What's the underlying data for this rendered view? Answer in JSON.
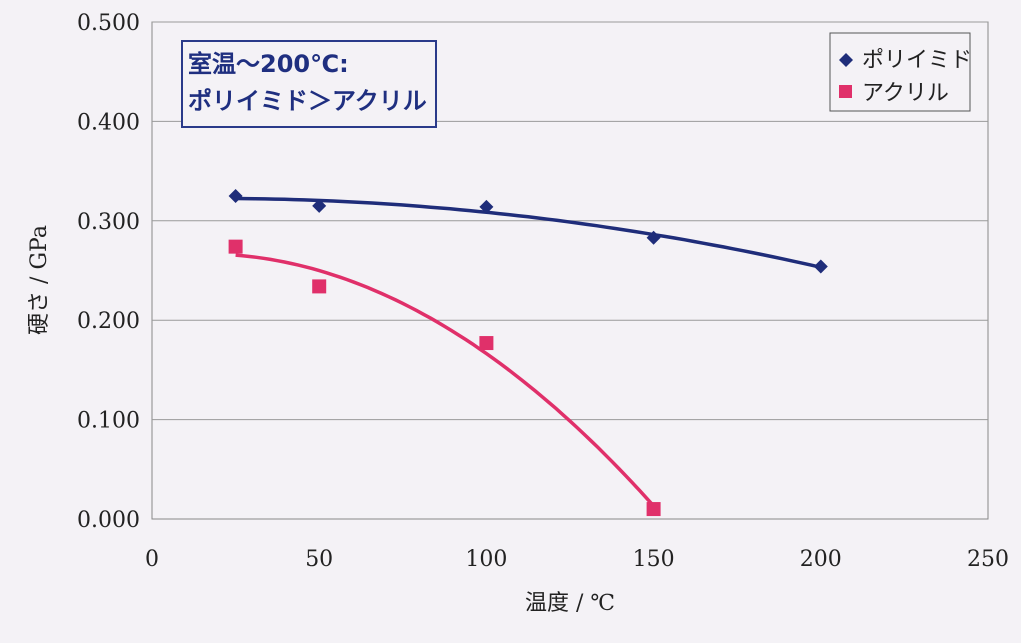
{
  "chart_data": {
    "type": "scatter",
    "xlabel": "温度 / ℃",
    "ylabel": "硬さ / GPa",
    "xlim": [
      0,
      250
    ],
    "ylim": [
      0,
      0.5
    ],
    "x_ticks": [
      "0",
      "50",
      "100",
      "150",
      "200",
      "250"
    ],
    "y_ticks": [
      "0.000",
      "0.100",
      "0.200",
      "0.300",
      "0.400",
      "0.500"
    ],
    "grid": "horizontal",
    "legend_position": "top-right",
    "annotation": [
      "室温～200℃:",
      "ポリイミド＞アクリル"
    ],
    "series": [
      {
        "name": "ポリイミド",
        "marker": "diamond",
        "color": "#1f2d7a",
        "x": [
          25,
          50,
          100,
          150,
          200
        ],
        "y": [
          0.325,
          0.315,
          0.314,
          0.283,
          0.254
        ],
        "trendline": true
      },
      {
        "name": "アクリル",
        "marker": "square",
        "color": "#e0306a",
        "x": [
          25,
          50,
          100,
          150
        ],
        "y": [
          0.274,
          0.234,
          0.177,
          0.01
        ],
        "trendline": true
      }
    ]
  }
}
